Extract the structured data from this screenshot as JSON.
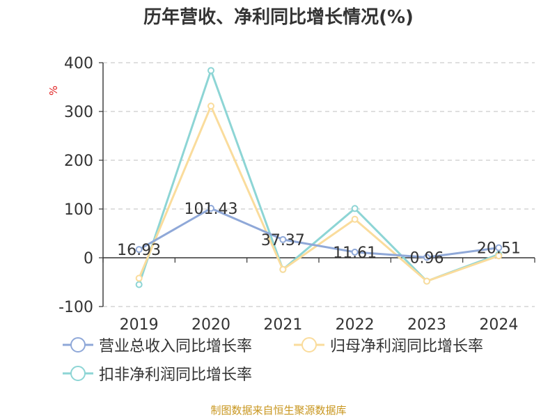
{
  "chart_data": {
    "type": "line",
    "title": "历年营收、净利同比增长情况(%)",
    "ylabel": "%",
    "categories": [
      "2019",
      "2020",
      "2021",
      "2022",
      "2023",
      "2024"
    ],
    "ylim": [
      -100,
      400
    ],
    "yticks": [
      -100,
      0,
      100,
      200,
      300,
      400
    ],
    "grid": true,
    "legend_position": "bottom-left",
    "series": [
      {
        "name": "营业总收入同比增长率",
        "color": "#8fa8d8",
        "values": [
          16.93,
          101.43,
          37.37,
          11.61,
          0.96,
          20.51
        ],
        "data_labels": [
          "16.93",
          "101.43",
          "37.37",
          "11.61",
          "0.96",
          "20.51"
        ]
      },
      {
        "name": "归母净利润同比增长率",
        "color": "#fadc9c",
        "values": [
          -42,
          311,
          -24,
          79,
          -48,
          4
        ]
      },
      {
        "name": "扣非净利润同比增长率",
        "color": "#8dd5d5",
        "values": [
          -55,
          384,
          -24,
          101,
          -48,
          7
        ]
      }
    ]
  },
  "source_note": "制图数据来自恒生聚源数据库"
}
